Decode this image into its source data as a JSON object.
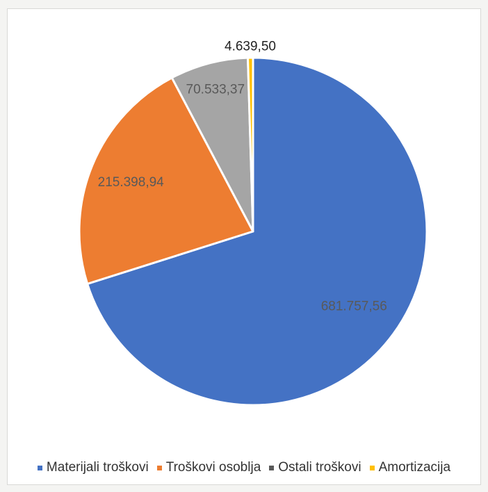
{
  "chart_data": {
    "type": "pie",
    "title": "",
    "slices": [
      {
        "name": "Materijali troškovi",
        "value": 681757.56,
        "label": "681.757,56",
        "color": "#4472C4"
      },
      {
        "name": "Troškovi osoblja",
        "value": 215398.94,
        "label": "215.398,94",
        "color": "#ED7D31"
      },
      {
        "name": "Ostali troškovi",
        "value": 70533.37,
        "label": "70.533,37",
        "color": "#A5A5A5"
      },
      {
        "name": "Amortizacija",
        "value": 4639.5,
        "label": "4.639,50",
        "color": "#FFC000"
      }
    ],
    "legend_position": "bottom",
    "data_labels": true
  }
}
